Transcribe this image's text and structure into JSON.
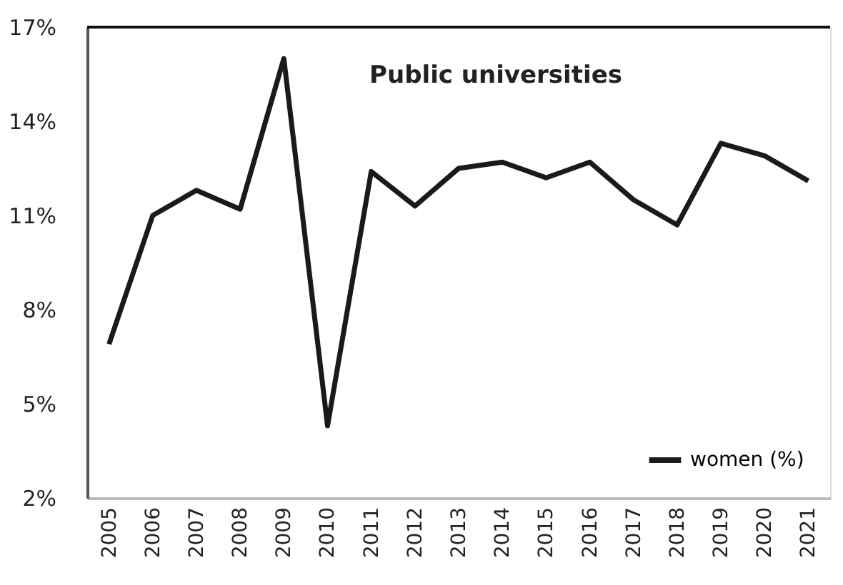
{
  "chart_data": {
    "type": "line",
    "title": "Public universities",
    "categories": [
      "2005",
      "2006",
      "2007",
      "2008",
      "2009",
      "2010",
      "2011",
      "2012",
      "2013",
      "2014",
      "2015",
      "2016",
      "2017",
      "2018",
      "2019",
      "2020",
      "2021"
    ],
    "series": [
      {
        "name": "women (%)",
        "color": "#1a1a1a",
        "values": [
          6.9,
          11.0,
          11.8,
          11.2,
          16.0,
          4.3,
          12.4,
          11.3,
          12.5,
          12.7,
          12.2,
          12.7,
          11.5,
          10.7,
          13.3,
          12.9,
          12.1
        ]
      }
    ],
    "ylim": [
      2,
      17
    ],
    "yticks": [
      {
        "value": 2,
        "label": "2%"
      },
      {
        "value": 5,
        "label": "5%"
      },
      {
        "value": 8,
        "label": "8%"
      },
      {
        "value": 11,
        "label": "11%"
      },
      {
        "value": 14,
        "label": "14%"
      },
      {
        "value": 17,
        "label": "17%"
      }
    ],
    "grid": false,
    "legend": "bottom right",
    "marker": "none",
    "line_style": "solid"
  }
}
